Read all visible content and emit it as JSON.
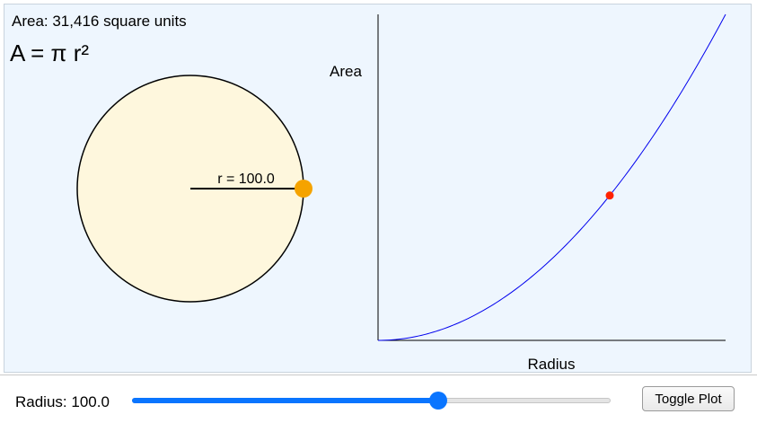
{
  "readout": {
    "area_text": "Area: 31,416 square units",
    "formula": "A = π r²",
    "radius_label": "r = 100.0"
  },
  "plot": {
    "y_axis_title": "Area",
    "x_axis_title": "Radius"
  },
  "controls": {
    "radius_text": "Radius: 100.0",
    "toggle_label": "Toggle Plot"
  },
  "slider": {
    "value": 100.0,
    "fill_fraction": 0.64
  },
  "colors": {
    "panel_bg": "#eef6fe",
    "circle_fill": "#fef7dd",
    "handle": "#f5a300",
    "curve": "#0000ee",
    "marker": "#ff2200",
    "slider_accent": "#0a75ff"
  },
  "chart_data": {
    "type": "line",
    "title": "",
    "xlabel": "Radius",
    "ylabel": "Area",
    "function": "A = π r²",
    "xlim": [
      0,
      150
    ],
    "ylim": [
      0,
      70686
    ],
    "series": [
      {
        "x": [
          0,
          15,
          30,
          45,
          60,
          75,
          90,
          100,
          105,
          120,
          135,
          150
        ],
        "y": [
          0,
          707,
          2827,
          6362,
          11310,
          17671,
          25447,
          31416,
          34636,
          45239,
          57256,
          70686
        ]
      }
    ],
    "current_point": {
      "x": 100.0,
      "y": 31416
    }
  }
}
